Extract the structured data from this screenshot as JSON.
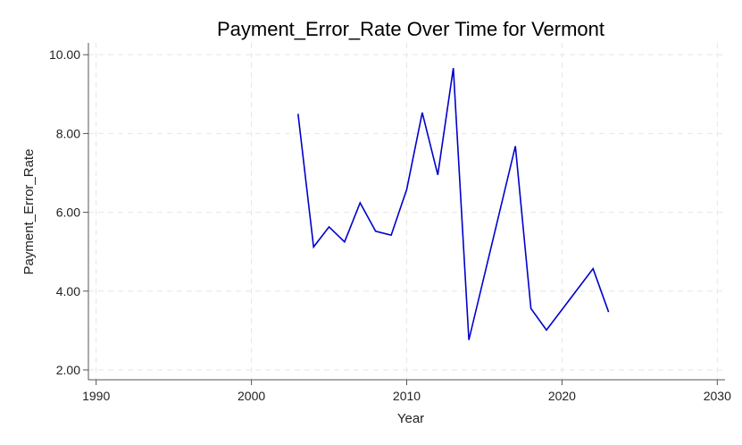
{
  "chart_data": {
    "type": "line",
    "title": "Payment_Error_Rate Over Time for Vermont",
    "xlabel": "Year",
    "ylabel": "Payment_Error_Rate",
    "xlim": [
      1989.5,
      2030.5
    ],
    "ylim": [
      1.75,
      10.3
    ],
    "x_ticks": [
      1990,
      2000,
      2010,
      2020,
      2030
    ],
    "y_ticks": [
      2,
      4,
      6,
      8,
      10
    ],
    "y_tick_labels": [
      "2.00",
      "4.00",
      "6.00",
      "8.00",
      "10.00"
    ],
    "grid": true,
    "color": "#0000cc",
    "x": [
      2003,
      2004,
      2005,
      2006,
      2007,
      2008,
      2009,
      2010,
      2011,
      2012,
      2013,
      2014,
      2017,
      2018,
      2019,
      2022,
      2023
    ],
    "y": [
      8.5,
      5.12,
      5.63,
      5.25,
      6.24,
      5.52,
      5.42,
      6.58,
      8.53,
      6.95,
      9.66,
      2.76,
      7.68,
      3.56,
      3.01,
      4.57,
      3.47
    ]
  }
}
